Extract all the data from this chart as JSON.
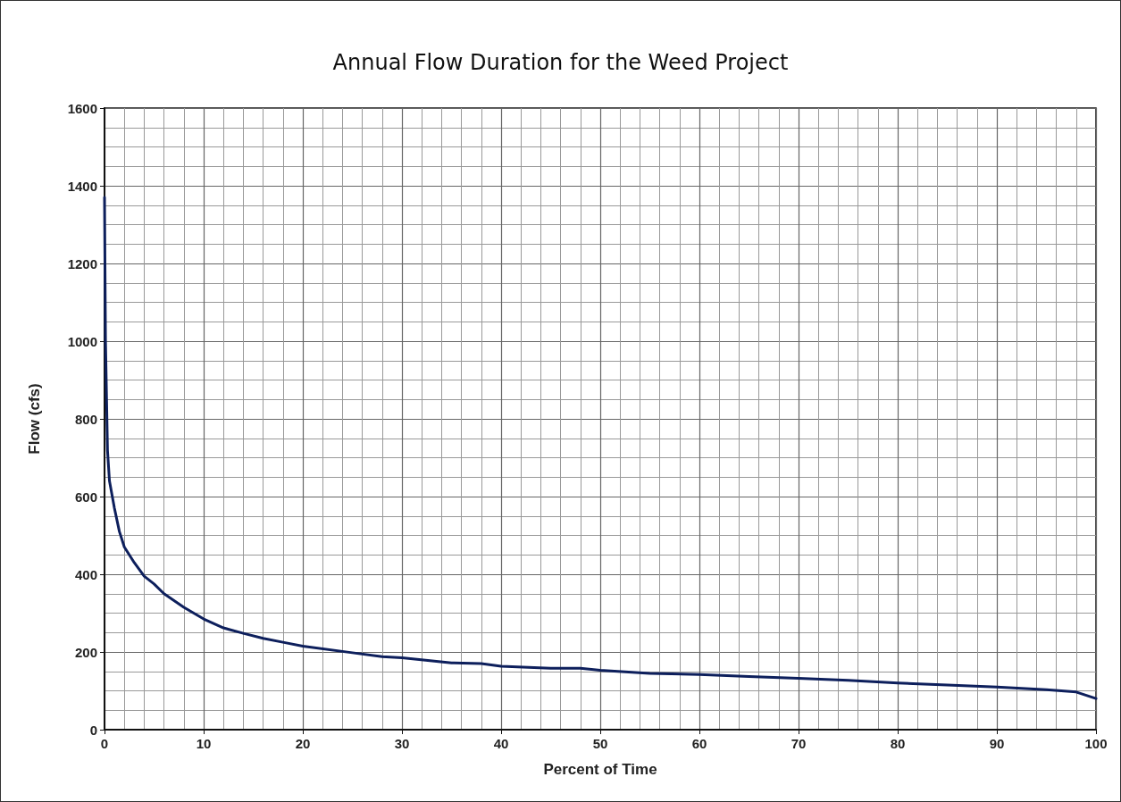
{
  "chart_data": {
    "type": "line",
    "title": "Annual Flow Duration for the Weed Project",
    "xlabel": "Percent of Time",
    "ylabel": "Flow (cfs)",
    "series": [
      {
        "color": "#0d1f5c",
        "x": [
          0,
          0.1,
          0.3,
          0.5,
          1,
          1.5,
          2,
          3,
          4,
          5,
          6,
          8,
          10,
          12,
          14,
          16,
          18,
          20,
          25,
          28,
          30,
          35,
          38,
          40,
          45,
          48,
          50,
          55,
          60,
          65,
          70,
          75,
          80,
          85,
          90,
          95,
          98,
          100
        ],
        "values": [
          1370,
          1000,
          720,
          640,
          570,
          510,
          470,
          430,
          395,
          375,
          350,
          315,
          285,
          262,
          248,
          235,
          225,
          215,
          198,
          188,
          185,
          172,
          170,
          163,
          158,
          158,
          153,
          145,
          142,
          137,
          132,
          127,
          120,
          115,
          110,
          103,
          97,
          80
        ]
      }
    ],
    "xlim": [
      0,
      100
    ],
    "xticks": [
      0,
      10,
      20,
      30,
      40,
      50,
      60,
      70,
      80,
      90,
      100
    ],
    "ylim": [
      0,
      1600
    ],
    "yticks": [
      0,
      200,
      400,
      600,
      800,
      1000,
      1200,
      1400,
      1600
    ],
    "grid": true,
    "marker": "none",
    "line_style": "solid"
  }
}
